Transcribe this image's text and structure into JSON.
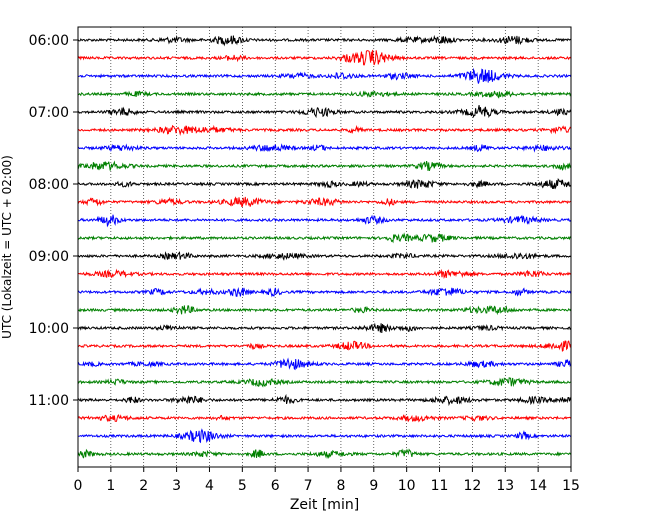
{
  "chart_data": {
    "type": "line",
    "title": "",
    "xlabel": "Zeit  [min]",
    "ylabel": "UTC (Lokalzeit = UTC + 02:00)",
    "xlim": [
      0,
      15
    ],
    "x_ticks": [
      0,
      1,
      2,
      3,
      4,
      5,
      6,
      7,
      8,
      9,
      10,
      11,
      12,
      13,
      14,
      15
    ],
    "x_tick_labels": [
      "0",
      "1",
      "2",
      "3",
      "4",
      "5",
      "6",
      "7",
      "8",
      "9",
      "10",
      "11",
      "12",
      "13",
      "14",
      "15"
    ],
    "y_tick_labels": [
      "06:00",
      "07:00",
      "08:00",
      "09:00",
      "10:00",
      "11:00"
    ],
    "y_tick_rows": [
      0,
      4,
      8,
      12,
      16,
      20
    ],
    "rows": 24,
    "row_interval_minutes": 15,
    "start_time": "06:00",
    "grid": "vertical dotted",
    "line_colors": [
      "#000000",
      "#ff0000",
      "#0000ff",
      "#008000"
    ]
  }
}
